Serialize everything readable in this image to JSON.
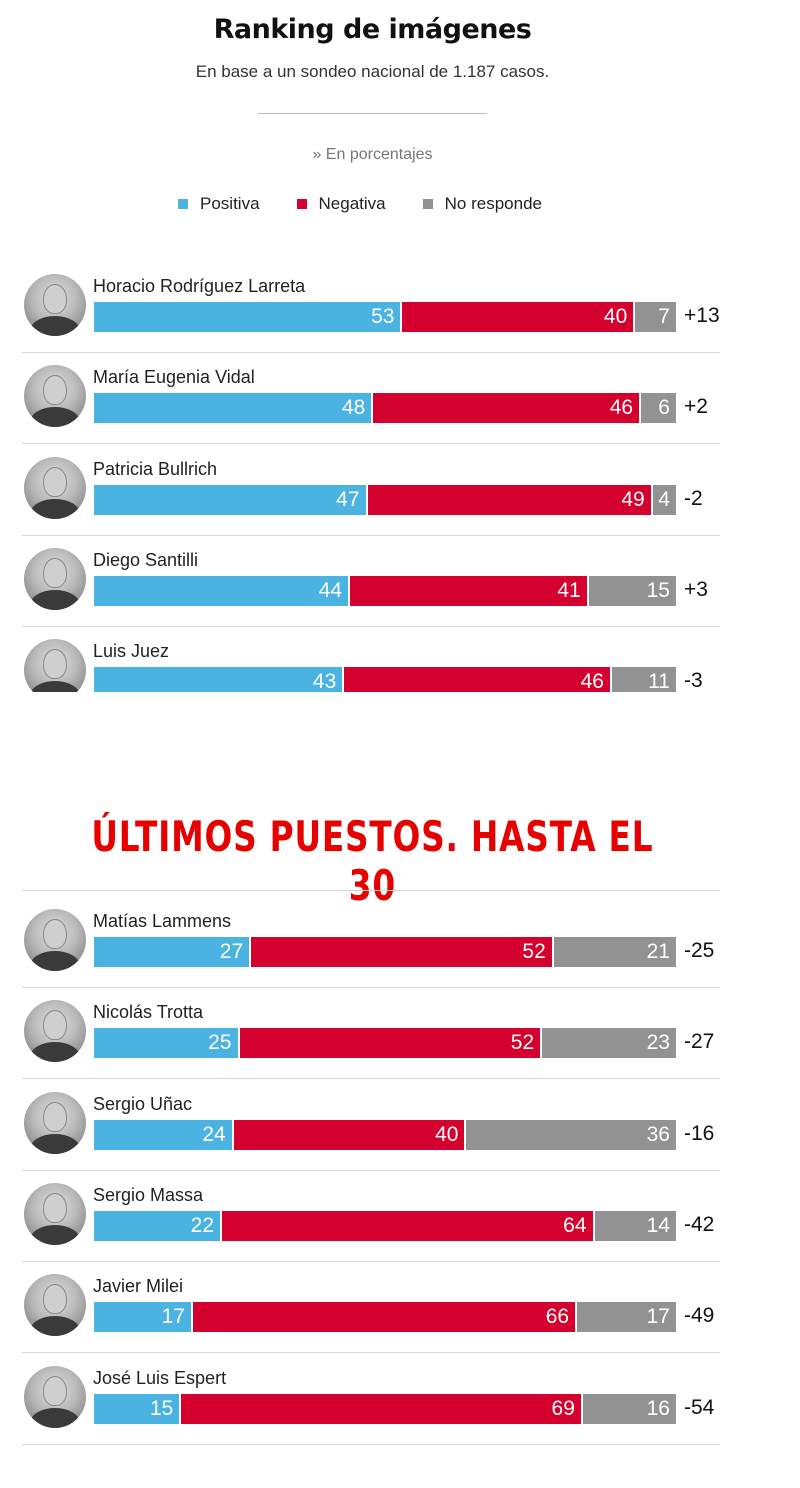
{
  "header": {
    "title": "Ranking de imágenes",
    "subtitle": "En base a un sondeo nacional de 1.187 casos.",
    "unit": "» En porcentajes"
  },
  "legend": [
    {
      "label": "Positiva",
      "color": "#4ab3e2"
    },
    {
      "label": "Negativa",
      "color": "#d4002d"
    },
    {
      "label": "No responde",
      "color": "#929292"
    }
  ],
  "banner": "ÚLTIMOS PUESTOS. HASTA EL 30",
  "chart_data": [
    {
      "type": "bar",
      "orientation": "horizontal-stacked",
      "title": "Ranking de imágenes",
      "categories": [
        "Horacio Rodríguez Larreta",
        "María Eugenia Vidal",
        "Patricia Bullrich",
        "Diego Santilli",
        "Luis Juez"
      ],
      "series": [
        {
          "name": "Positiva",
          "values": [
            53,
            48,
            47,
            44,
            43
          ]
        },
        {
          "name": "Negativa",
          "values": [
            40,
            46,
            49,
            41,
            46
          ]
        },
        {
          "name": "No responde",
          "values": [
            7,
            6,
            4,
            15,
            11
          ]
        }
      ],
      "net": [
        "+13",
        "+2",
        "-2",
        "+3",
        "-3"
      ]
    },
    {
      "type": "bar",
      "orientation": "horizontal-stacked",
      "title": "ÚLTIMOS PUESTOS. HASTA EL 30",
      "categories": [
        "Matías Lammens",
        "Nicolás Trotta",
        "Sergio Uñac",
        "Sergio Massa",
        "Javier Milei",
        "José Luis Espert"
      ],
      "series": [
        {
          "name": "Positiva",
          "values": [
            27,
            25,
            24,
            22,
            17,
            15
          ]
        },
        {
          "name": "Negativa",
          "values": [
            52,
            52,
            40,
            64,
            66,
            69
          ]
        },
        {
          "name": "No responde",
          "values": [
            21,
            23,
            36,
            14,
            17,
            16
          ]
        }
      ],
      "net": [
        "-25",
        "-27",
        "-16",
        "-42",
        "-49",
        "-54"
      ]
    }
  ]
}
